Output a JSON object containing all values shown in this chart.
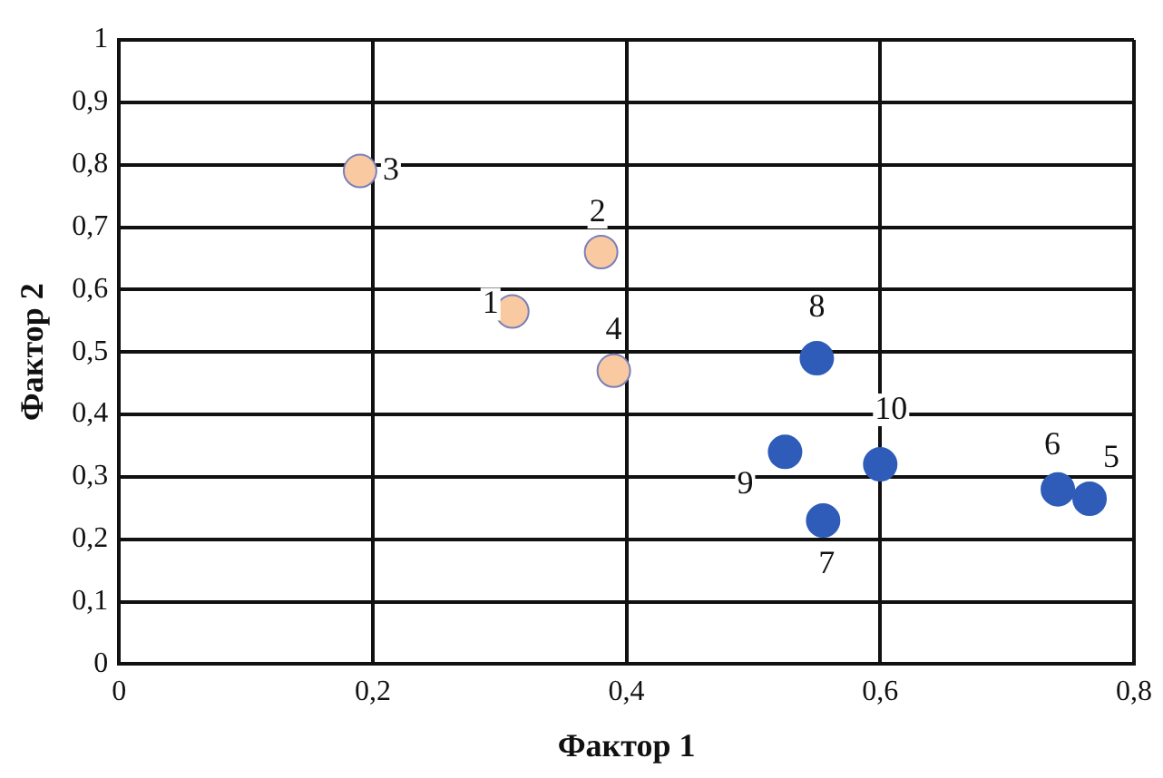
{
  "chart_data": {
    "type": "scatter",
    "xlabel": "Фактор 1",
    "ylabel": "Фактор 2",
    "series": [
      {
        "color": "#f9c9a1",
        "x": [
          0.31,
          0.38,
          0.19,
          0.39
        ],
        "values": [
          0.565,
          0.66,
          0.79,
          0.47
        ]
      },
      {
        "color": "#2e5cb8",
        "x": [
          0.765,
          0.74,
          0.555,
          0.55,
          0.525,
          0.6
        ],
        "values": [
          0.265,
          0.28,
          0.23,
          0.49,
          0.34,
          0.32
        ]
      }
    ],
    "annotations": [
      {
        "text": "1",
        "x": 0.31,
        "y": 0.565
      },
      {
        "text": "2",
        "x": 0.38,
        "y": 0.66
      },
      {
        "text": "3",
        "x": 0.19,
        "y": 0.79
      },
      {
        "text": "4",
        "x": 0.39,
        "y": 0.47
      },
      {
        "text": "5",
        "x": 0.765,
        "y": 0.265
      },
      {
        "text": "6",
        "x": 0.74,
        "y": 0.28
      },
      {
        "text": "7",
        "x": 0.555,
        "y": 0.23
      },
      {
        "text": "8",
        "x": 0.55,
        "y": 0.49
      },
      {
        "text": "9",
        "x": 0.525,
        "y": 0.34
      },
      {
        "text": "10",
        "x": 0.6,
        "y": 0.32
      }
    ],
    "xlim": [
      0,
      0.8
    ],
    "xticks": [
      0,
      {
        "value": 0.2,
        "label": "0,2"
      },
      {
        "value": 0.4,
        "label": "0,4"
      },
      {
        "value": 0.6,
        "label": "0,6"
      },
      {
        "value": 0.8,
        "label": "0,8"
      }
    ],
    "ylim": [
      0,
      1
    ],
    "yticks": [
      0,
      {
        "value": 0.1,
        "label": "0,1"
      },
      {
        "value": 0.2,
        "label": "0,2"
      },
      {
        "value": 0.3,
        "label": "0,3"
      },
      {
        "value": 0.4,
        "label": "0,4"
      },
      {
        "value": 0.5,
        "label": "0,5"
      },
      {
        "value": 0.6,
        "label": "0,6"
      },
      {
        "value": 0.7,
        "label": "0,7"
      },
      {
        "value": 0.8,
        "label": "0,8"
      },
      {
        "value": 0.9,
        "label": "0,9"
      },
      {
        "value": 1,
        "label": "1"
      }
    ],
    "grid": true,
    "legend": false,
    "marker": "circle"
  }
}
